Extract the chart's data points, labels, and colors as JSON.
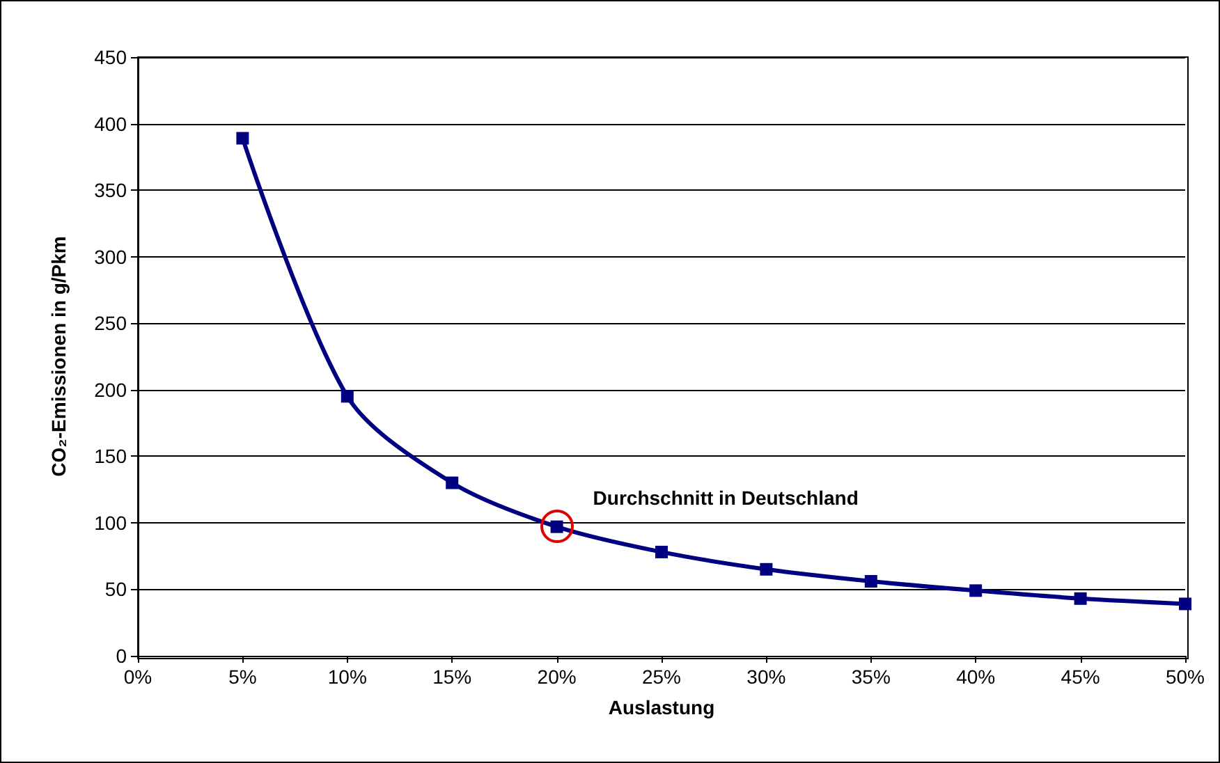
{
  "chart_data": {
    "type": "line",
    "xlabel": "Auslastung",
    "ylabel": "CO₂-Emissionen in g/Pkm",
    "x": [
      5,
      10,
      15,
      20,
      25,
      30,
      35,
      40,
      45,
      50
    ],
    "series": [
      {
        "color": "#000080",
        "values": [
          389,
          195,
          130,
          97,
          78,
          65,
          56,
          49,
          43,
          39
        ]
      }
    ],
    "xlim": [
      0,
      50
    ],
    "xticks": [
      {
        "value": 0,
        "label": "0%"
      },
      {
        "value": 5,
        "label": "5%"
      },
      {
        "value": 10,
        "label": "10%"
      },
      {
        "value": 15,
        "label": "15%"
      },
      {
        "value": 20,
        "label": "20%"
      },
      {
        "value": 25,
        "label": "25%"
      },
      {
        "value": 30,
        "label": "30%"
      },
      {
        "value": 35,
        "label": "35%"
      },
      {
        "value": 40,
        "label": "40%"
      },
      {
        "value": 45,
        "label": "45%"
      },
      {
        "value": 50,
        "label": "50%"
      }
    ],
    "ylim": [
      0,
      450
    ],
    "yticks": [
      0,
      50,
      100,
      150,
      200,
      250,
      300,
      350,
      400,
      450
    ],
    "grid": "y",
    "marker": "square",
    "line_style": "solid",
    "annotations": [
      {
        "text": "Durchschnitt in Deutschland",
        "x": 20,
        "y": 97
      }
    ]
  }
}
